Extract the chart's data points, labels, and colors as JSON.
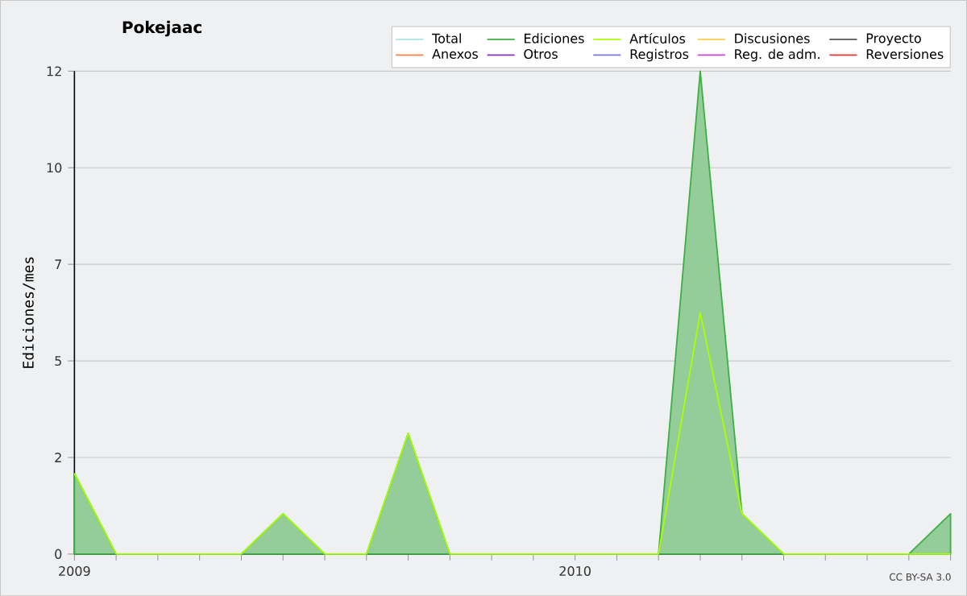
{
  "chart_data": {
    "type": "line",
    "title": "Pokejaac",
    "ylabel": "Ediciones/mes",
    "x": [
      "2009-01",
      "2009-02",
      "2009-03",
      "2009-04",
      "2009-05",
      "2009-06",
      "2009-07",
      "2009-08",
      "2009-09",
      "2009-10",
      "2009-11",
      "2009-12",
      "2010-01",
      "2010-02",
      "2010-03",
      "2010-04",
      "2010-05",
      "2010-06",
      "2010-07",
      "2010-08",
      "2010-09",
      "2010-10"
    ],
    "xlim": [
      "2009-01",
      "2010-10"
    ],
    "xticks": [
      {
        "value": "2009-01",
        "label": "2009"
      },
      {
        "value": "2009-02",
        "label": null
      },
      {
        "value": "2009-03",
        "label": null
      },
      {
        "value": "2009-04",
        "label": null
      },
      {
        "value": "2009-05",
        "label": null
      },
      {
        "value": "2009-06",
        "label": null
      },
      {
        "value": "2009-07",
        "label": null
      },
      {
        "value": "2009-08",
        "label": null
      },
      {
        "value": "2009-09",
        "label": null
      },
      {
        "value": "2009-10",
        "label": null
      },
      {
        "value": "2009-11",
        "label": null
      },
      {
        "value": "2009-12",
        "label": null
      },
      {
        "value": "2010-01",
        "label": "2010"
      },
      {
        "value": "2010-02",
        "label": null
      },
      {
        "value": "2010-03",
        "label": null
      },
      {
        "value": "2010-04",
        "label": null
      },
      {
        "value": "2010-05",
        "label": null
      },
      {
        "value": "2010-06",
        "label": null
      },
      {
        "value": "2010-07",
        "label": null
      },
      {
        "value": "2010-08",
        "label": null
      },
      {
        "value": "2010-09",
        "label": null
      },
      {
        "value": "2010-10",
        "label": null
      }
    ],
    "ylim": [
      0,
      12
    ],
    "yticks": [
      0,
      {
        "value": 2.4,
        "label": "2"
      },
      {
        "value": 4.8,
        "label": "5"
      },
      {
        "value": 7.2,
        "label": "7"
      },
      {
        "value": 9.6,
        "label": "10"
      },
      12
    ],
    "grid": "y",
    "legend": "top right",
    "annotations": [
      "CC BY-SA 3.0"
    ],
    "series": [
      {
        "name": "Total",
        "color": "#a8e4e0",
        "values": [
          null,
          null,
          null,
          null,
          null,
          null,
          null,
          null,
          null,
          null,
          null,
          null,
          null,
          null,
          null,
          null,
          null,
          null,
          null,
          null,
          null,
          null
        ]
      },
      {
        "name": "Ediciones",
        "type": "area",
        "color": "#3cb043",
        "values": [
          2,
          0,
          0,
          0,
          0,
          1,
          0,
          0,
          3,
          0,
          0,
          0,
          0,
          0,
          0,
          12,
          1,
          0,
          0,
          0,
          0,
          1
        ]
      },
      {
        "name": "Artículos",
        "color": "#aaff00",
        "values": [
          2,
          0,
          0,
          0,
          0,
          1,
          0,
          0,
          3,
          0,
          0,
          0,
          0,
          0,
          0,
          6,
          1,
          0,
          0,
          0,
          0,
          0
        ]
      },
      {
        "name": "Discusiones",
        "color": "#ffcc44",
        "values": [
          null,
          null,
          null,
          null,
          null,
          null,
          null,
          null,
          null,
          null,
          null,
          null,
          null,
          null,
          null,
          null,
          null,
          null,
          null,
          null,
          null,
          null
        ]
      },
      {
        "name": "Proyecto",
        "color": "#555555",
        "values": [
          null,
          null,
          null,
          null,
          null,
          null,
          null,
          null,
          null,
          null,
          null,
          null,
          null,
          null,
          null,
          null,
          null,
          null,
          null,
          null,
          null,
          null
        ]
      },
      {
        "name": "Anexos",
        "color": "#ff8040",
        "values": [
          null,
          null,
          null,
          null,
          null,
          null,
          null,
          null,
          null,
          null,
          null,
          null,
          null,
          null,
          null,
          null,
          null,
          null,
          null,
          null,
          null,
          null
        ]
      },
      {
        "name": "Otros",
        "color": "#8833cc",
        "values": [
          null,
          null,
          null,
          null,
          null,
          null,
          null,
          null,
          null,
          null,
          null,
          null,
          null,
          null,
          null,
          null,
          null,
          null,
          null,
          null,
          null,
          null
        ]
      },
      {
        "name": "Registros",
        "color": "#7777ee",
        "values": [
          null,
          null,
          null,
          null,
          null,
          null,
          null,
          null,
          null,
          null,
          null,
          null,
          null,
          null,
          null,
          null,
          null,
          null,
          null,
          null,
          null,
          null
        ]
      },
      {
        "name": "Reg. de adm.",
        "color": "#cc44dd",
        "values": [
          null,
          null,
          null,
          null,
          null,
          null,
          null,
          null,
          null,
          null,
          null,
          null,
          null,
          null,
          null,
          null,
          null,
          null,
          null,
          null,
          null,
          null
        ]
      },
      {
        "name": "Reversiones",
        "color": "#ee3333",
        "values": [
          null,
          null,
          null,
          null,
          null,
          null,
          null,
          null,
          null,
          null,
          null,
          null,
          null,
          null,
          null,
          null,
          null,
          null,
          null,
          null,
          null,
          null
        ]
      }
    ]
  }
}
